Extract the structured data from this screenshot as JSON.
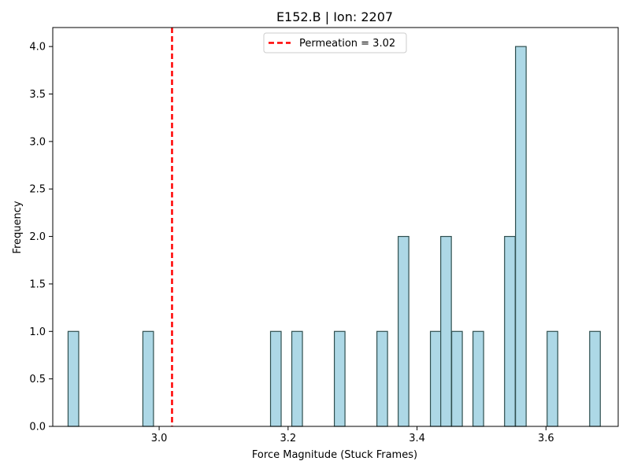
{
  "chart_data": {
    "type": "bar",
    "title": "E152.B | Ion: 2207",
    "xlabel": "Force Magnitude (Stuck Frames)",
    "ylabel": "Frequency",
    "xlim": [
      2.835,
      3.712
    ],
    "ylim": [
      0,
      4.2
    ],
    "xticks": [
      3.0,
      3.2,
      3.4,
      3.6
    ],
    "xtick_labels": [
      "3.0",
      "3.2",
      "3.4",
      "3.6"
    ],
    "yticks": [
      0,
      0.5,
      1,
      1.5,
      2,
      2.5,
      3,
      3.5,
      4
    ],
    "ytick_labels": [
      "0.0",
      "0.5",
      "1.0",
      "1.5",
      "2.0",
      "2.5",
      "3.0",
      "3.5",
      "4.0"
    ],
    "bin_width": 0.0165,
    "bars": [
      {
        "x": 2.867,
        "count": 1
      },
      {
        "x": 2.983,
        "count": 1
      },
      {
        "x": 3.181,
        "count": 1
      },
      {
        "x": 3.214,
        "count": 1
      },
      {
        "x": 3.28,
        "count": 1
      },
      {
        "x": 3.346,
        "count": 1
      },
      {
        "x": 3.379,
        "count": 2
      },
      {
        "x": 3.429,
        "count": 1
      },
      {
        "x": 3.445,
        "count": 2
      },
      {
        "x": 3.462,
        "count": 1
      },
      {
        "x": 3.495,
        "count": 1
      },
      {
        "x": 3.544,
        "count": 2
      },
      {
        "x": 3.561,
        "count": 4
      },
      {
        "x": 3.61,
        "count": 1
      },
      {
        "x": 3.676,
        "count": 1
      }
    ],
    "bar_color": "#add8e6",
    "bar_edge_color": "#2f4f4f",
    "reference_line": {
      "x": 3.02,
      "color": "#ff0000",
      "style": "dashed",
      "label": "Permeation = 3.02"
    },
    "legend": {
      "position": "top-center",
      "entries": [
        "Permeation = 3.02"
      ]
    },
    "grid": false
  }
}
